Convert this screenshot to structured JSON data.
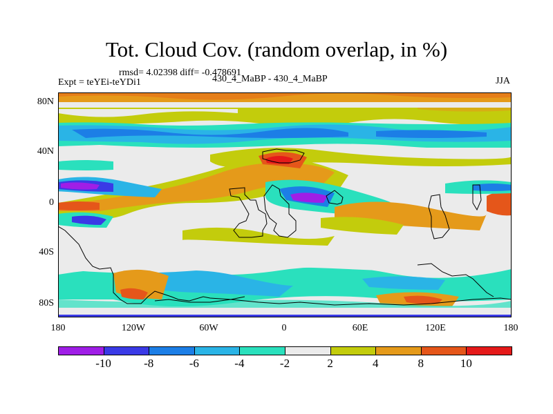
{
  "title": "Tot. Cloud Cov. (random overlap, in %)",
  "stats": "rmsd= 4.02398 diff= -0.478691",
  "expt": "Expt = teYEi-teYDi1",
  "cases": "430_4_MaBP - 430_4_MaBP",
  "season": "JJA",
  "y_ticks": [
    "80N",
    "40N",
    "0",
    "40S",
    "80S"
  ],
  "x_ticks": [
    "180",
    "120W",
    "60W",
    "0",
    "60E",
    "120E",
    "180"
  ],
  "colorbar": {
    "colors": [
      "#9f1ee6",
      "#3a3ae6",
      "#1c7ee6",
      "#2ab4e6",
      "#2ae0bd",
      "#ebebeb",
      "#c3cc0c",
      "#e59a1a",
      "#e5561a",
      "#e51a1a"
    ],
    "labels": [
      "-10",
      "-8",
      "-6",
      "-4",
      "-2",
      "2",
      "4",
      "8",
      "10"
    ]
  },
  "chart_data": {
    "type": "heatmap",
    "title": "Tot. Cloud Cov. (random overlap, in %)",
    "x_range": [
      -180,
      180
    ],
    "y_range": [
      -90,
      90
    ],
    "levels": [
      -10,
      -8,
      -6,
      -4,
      -2,
      2,
      4,
      8,
      10
    ],
    "units": "%",
    "features": [
      {
        "name": "arctic-positive-band",
        "lon": [
          -180,
          180
        ],
        "lat": [
          84,
          90
        ],
        "value": 6
      },
      {
        "name": "north-positive-band",
        "lon": [
          -180,
          180
        ],
        "lat": [
          72,
          82
        ],
        "value": 3
      },
      {
        "name": "north-negative-band",
        "lon": [
          -180,
          180
        ],
        "lat": [
          52,
          66
        ],
        "value": -5
      },
      {
        "name": "central-pacific-positive-tongue",
        "lon": [
          -180,
          -40
        ],
        "lat": [
          -5,
          35
        ],
        "value": 5
      },
      {
        "name": "north-atlantic-positive",
        "lon": [
          -30,
          40
        ],
        "lat": [
          10,
          40
        ],
        "value": 5
      },
      {
        "name": "africa-negative",
        "lon": [
          0,
          50
        ],
        "lat": [
          -15,
          10
        ],
        "value": -9
      },
      {
        "name": "west-pacific-negative",
        "lon": [
          -180,
          -140
        ],
        "lat": [
          5,
          20
        ],
        "value": -9
      },
      {
        "name": "indian-ocean-positive",
        "lon": [
          40,
          120
        ],
        "lat": [
          -25,
          0
        ],
        "value": 5
      },
      {
        "name": "southern-negative-band",
        "lon": [
          -180,
          180
        ],
        "lat": [
          -75,
          -55
        ],
        "value": -4
      },
      {
        "name": "antarctic-positive-patch",
        "lon": [
          100,
          140
        ],
        "lat": [
          -80,
          -70
        ],
        "value": 6
      }
    ]
  }
}
